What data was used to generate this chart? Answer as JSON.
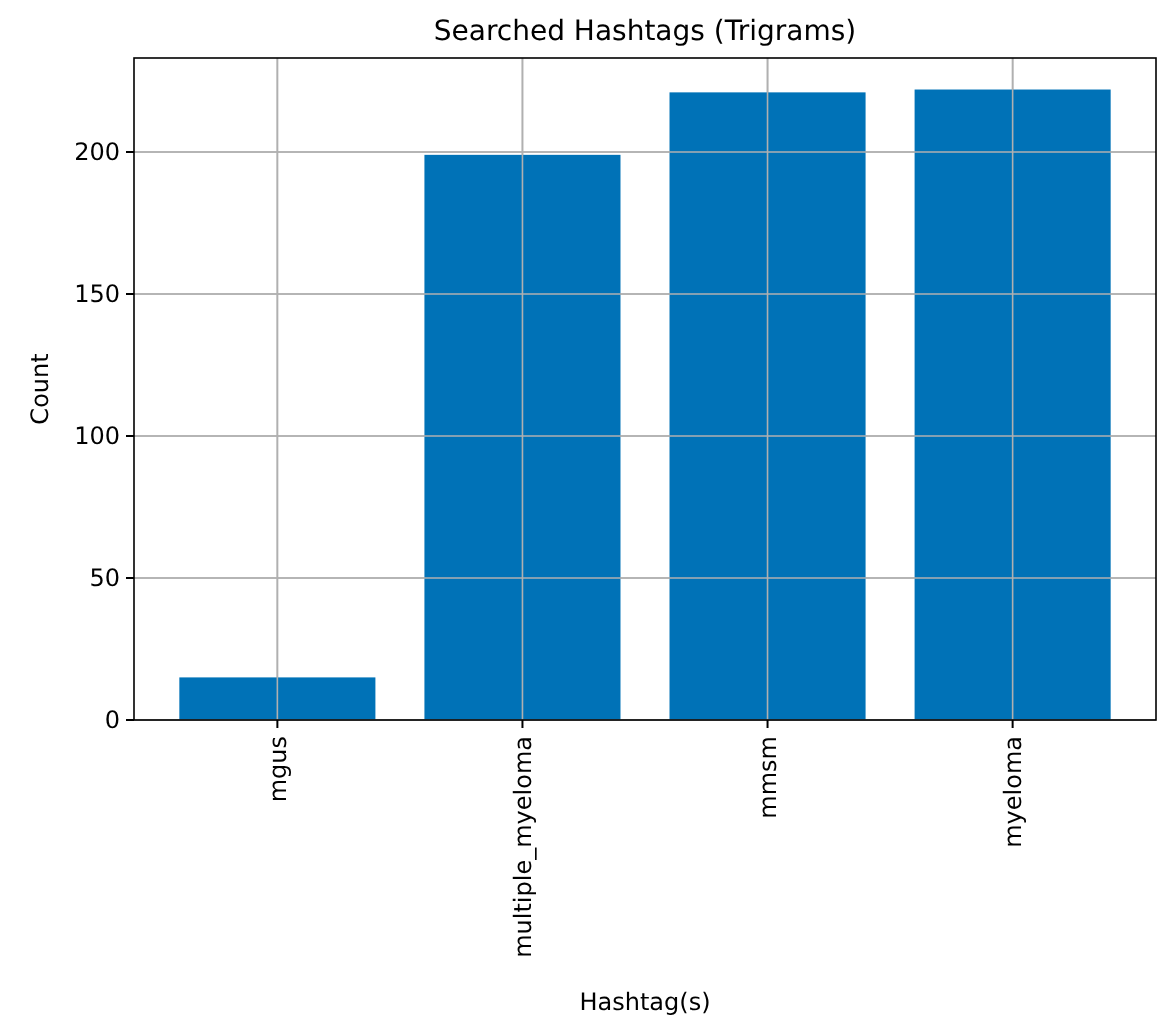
{
  "chart_data": {
    "type": "bar",
    "title": "Searched Hashtags (Trigrams)",
    "xlabel": "Hashtag(s)",
    "ylabel": "Count",
    "categories": [
      "mgus",
      "multiple_myeloma",
      "mmsm",
      "myeloma"
    ],
    "values": [
      15,
      199,
      221,
      222
    ],
    "color": "#0072b7",
    "ylim": [
      0,
      233.1
    ],
    "yticks": [
      0,
      50,
      100,
      150,
      200
    ],
    "grid": true
  }
}
